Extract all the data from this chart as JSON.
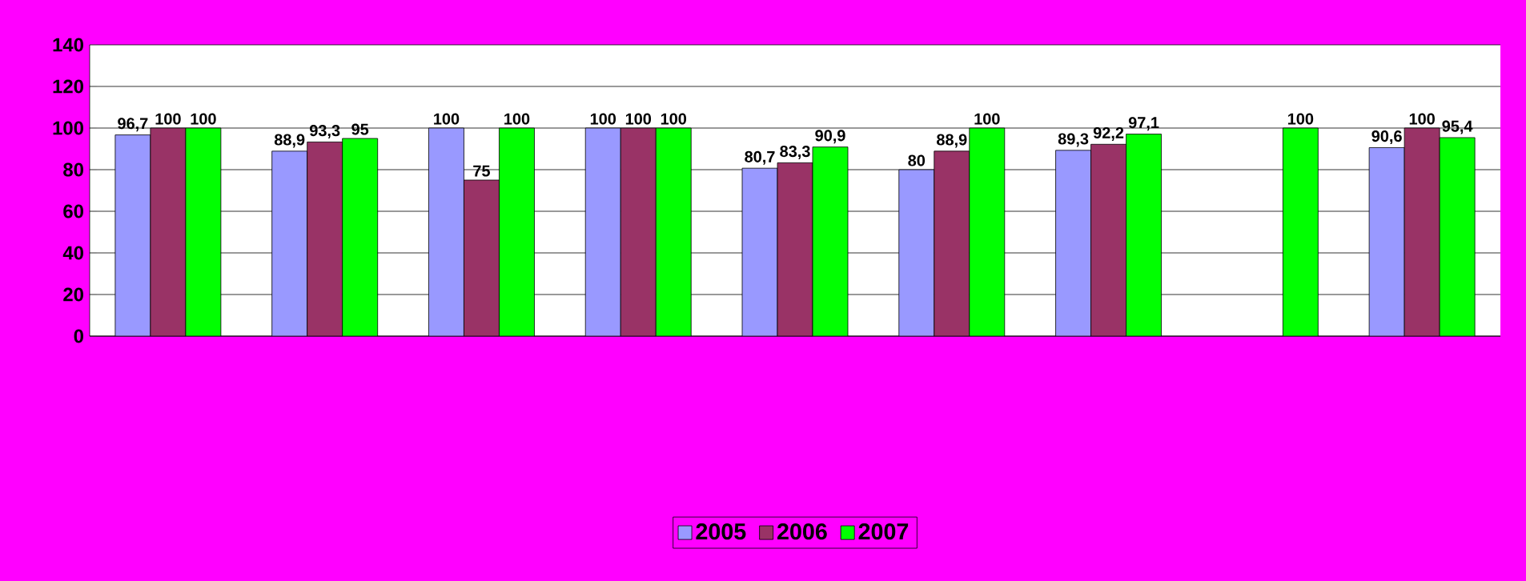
{
  "chart_data": {
    "type": "bar",
    "categories": [
      null,
      null,
      null,
      null,
      null,
      null,
      null,
      null,
      null
    ],
    "series": [
      {
        "name": "2005",
        "color": "#9999ff",
        "values": [
          96.7,
          88.9,
          100,
          100,
          80.7,
          80,
          89.3,
          null,
          90.6
        ],
        "value_labels": [
          "96,7",
          "88,9",
          "100",
          "100",
          "80,7",
          "80",
          "89,3",
          null,
          "90,6"
        ]
      },
      {
        "name": "2006",
        "color": "#993366",
        "values": [
          100,
          93.3,
          75,
          100,
          83.3,
          88.9,
          92.2,
          null,
          100
        ],
        "value_labels": [
          "100",
          "93,3",
          "75",
          "100",
          "83,3",
          "88,9",
          "92,2",
          null,
          "100"
        ]
      },
      {
        "name": "2007",
        "color": "#00ff00",
        "values": [
          100,
          95,
          100,
          100,
          90.9,
          100,
          97.1,
          100,
          95.4
        ],
        "value_labels": [
          "100",
          "95",
          "100",
          "100",
          "90,9",
          "100",
          "97,1",
          "100",
          "95,4"
        ]
      }
    ],
    "ylim": [
      0,
      140
    ],
    "yticks": [
      0,
      20,
      40,
      60,
      80,
      100,
      120,
      140
    ],
    "grid": "y",
    "legend": "bottom"
  }
}
